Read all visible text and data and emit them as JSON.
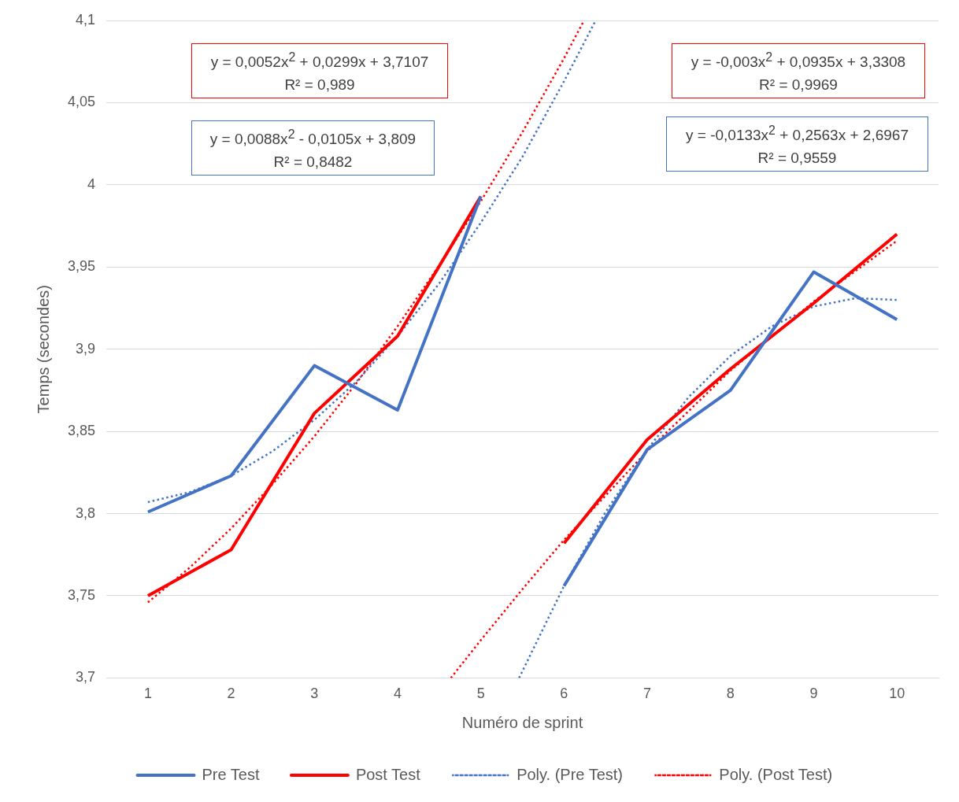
{
  "chart_data": {
    "type": "line",
    "xlabel": "Numéro de sprint",
    "ylabel": "Temps (secondes)",
    "xlim": [
      0.5,
      10.5
    ],
    "xticks": [
      1,
      2,
      3,
      4,
      5,
      6,
      7,
      8,
      9,
      10
    ],
    "ylim": [
      3.7,
      4.1
    ],
    "yticks": [
      {
        "value": 3.7,
        "label": "3,7"
      },
      {
        "value": 3.75,
        "label": "3,75"
      },
      {
        "value": 3.8,
        "label": "3,8"
      },
      {
        "value": 3.85,
        "label": "3,85"
      },
      {
        "value": 3.9,
        "label": "3,9"
      },
      {
        "value": 3.95,
        "label": "3,95"
      },
      {
        "value": 4,
        "label": "4"
      },
      {
        "value": 4.05,
        "label": "4,05"
      },
      {
        "value": 4.1,
        "label": "4,1"
      }
    ],
    "grid": "y",
    "legend": "bottom",
    "marker": "none",
    "series": [
      {
        "name": "Pre Test",
        "color": "#4472c4",
        "line_style": "solid",
        "x": [
          1,
          2,
          3,
          4,
          5
        ],
        "values": [
          3.801,
          3.823,
          3.89,
          3.863,
          3.993
        ]
      },
      {
        "color": "#4472c4",
        "line_style": "solid",
        "x": [
          6,
          7,
          8,
          9,
          10
        ],
        "values": [
          3.756,
          3.839,
          3.875,
          3.947,
          3.918
        ]
      },
      {
        "name": "Post Test",
        "color": "#ff0000",
        "line_style": "solid",
        "x": [
          1,
          2,
          3,
          4,
          5
        ],
        "values": [
          3.75,
          3.778,
          3.861,
          3.908,
          3.993
        ]
      },
      {
        "color": "#ff0000",
        "line_style": "solid",
        "x": [
          6,
          7,
          8,
          9,
          10
        ],
        "values": [
          3.782,
          3.845,
          3.888,
          3.928,
          3.97
        ]
      },
      {
        "name": "Poly. (Pre Test)",
        "color": "#4472c4",
        "line_style": "dotted",
        "x": [
          1,
          1.5,
          2,
          2.5,
          3,
          3.5,
          4,
          4.5,
          5,
          5.5,
          6,
          6.38
        ],
        "values": [
          3.807,
          3.813,
          3.823,
          3.838,
          3.857,
          3.88,
          3.908,
          3.94,
          3.977,
          4.017,
          4.063,
          4.1
        ]
      },
      {
        "color": "#4472c4",
        "line_style": "dotted",
        "x": [
          5.46,
          6,
          6.5,
          7,
          7.5,
          8,
          8.5,
          9,
          9.5,
          10
        ],
        "values": [
          3.7,
          3.756,
          3.801,
          3.839,
          3.871,
          3.896,
          3.914,
          3.926,
          3.931,
          3.93
        ]
      },
      {
        "name": "Poly. (Post Test)",
        "color": "#ff0000",
        "line_style": "dotted",
        "x": [
          1,
          1.5,
          2,
          2.5,
          3,
          3.5,
          4,
          4.5,
          5,
          5.5,
          6,
          6.24
        ],
        "values": [
          3.746,
          3.767,
          3.791,
          3.818,
          3.847,
          3.879,
          3.914,
          3.951,
          3.99,
          4.032,
          4.077,
          4.1
        ]
      },
      {
        "color": "#ff0000",
        "line_style": "dotted",
        "x": [
          4.64,
          5,
          5.5,
          6,
          7,
          8,
          9,
          10
        ],
        "values": [
          3.7,
          3.723,
          3.754,
          3.784,
          3.838,
          3.887,
          3.929,
          3.966
        ]
      }
    ],
    "annotations": [
      "y = 0,0052x$^{2}$ + 0,0299x + 3,7107\nR² = 0,989",
      "y = 0,0088x$^{2}$ - 0,0105x + 3,809\nR² = 0,8482",
      "y = -0,003x$^{2}$ + 0,0935x + 3,3308\nR² = 0,9969",
      "y = -0,0133x$^{2}$ + 0,2563x + 2,6967\nR² = 0,9559"
    ]
  }
}
